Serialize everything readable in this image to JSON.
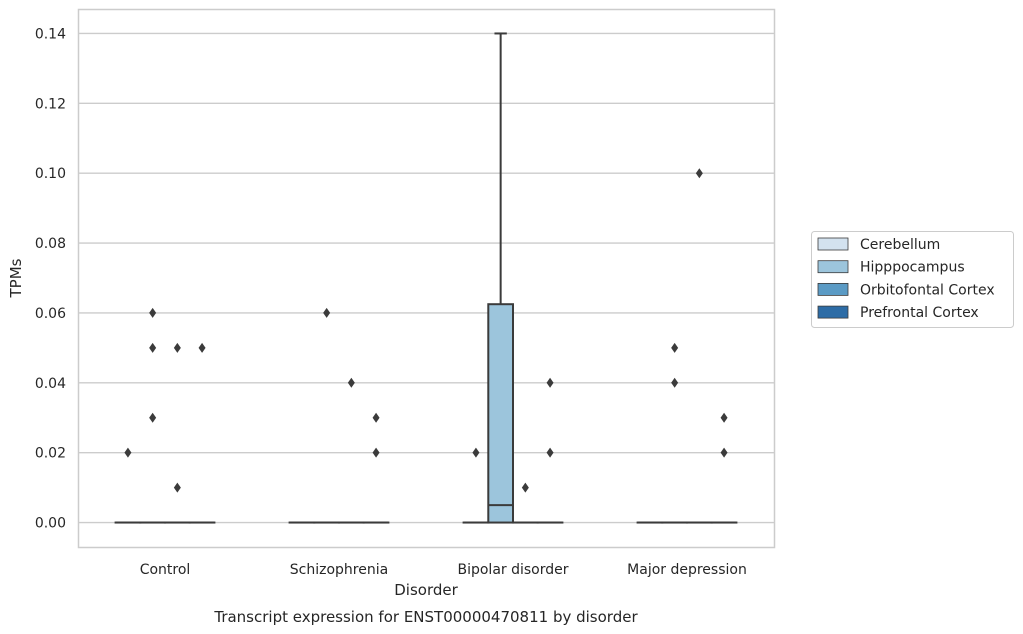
{
  "chart_data": {
    "type": "box",
    "caption": "Transcript expression for ENST00000470811 by disorder",
    "xlabel": "Disorder",
    "ylabel": "TPMs",
    "ylim": [
      -0.007,
      0.147
    ],
    "yticks": [
      0.0,
      0.02,
      0.04,
      0.06,
      0.08,
      0.1,
      0.12,
      0.14
    ],
    "ytick_labels": [
      "0.00",
      "0.02",
      "0.04",
      "0.06",
      "0.08",
      "0.10",
      "0.12",
      "0.14"
    ],
    "grid": "horizontal",
    "legend_position": "right",
    "categories": [
      "Control",
      "Schizophrenia",
      "Bipolar disorder",
      "Major depression"
    ],
    "series": [
      {
        "name": "Cerebellum",
        "color": "#d3e2ef",
        "boxes": [
          {
            "category": "Control",
            "q1": 0,
            "median": 0,
            "q3": 0,
            "whisker_low": 0,
            "whisker_high": 0,
            "outliers": [
              0.02
            ]
          },
          {
            "category": "Schizophrenia",
            "q1": 0,
            "median": 0,
            "q3": 0,
            "whisker_low": 0,
            "whisker_high": 0,
            "outliers": []
          },
          {
            "category": "Bipolar disorder",
            "q1": 0,
            "median": 0,
            "q3": 0,
            "whisker_low": 0,
            "whisker_high": 0,
            "outliers": [
              0.02
            ]
          },
          {
            "category": "Major depression",
            "q1": 0,
            "median": 0,
            "q3": 0,
            "whisker_low": 0,
            "whisker_high": 0,
            "outliers": []
          }
        ]
      },
      {
        "name": "Hipppocampus",
        "color": "#9cc5dc",
        "boxes": [
          {
            "category": "Control",
            "q1": 0,
            "median": 0,
            "q3": 0,
            "whisker_low": 0,
            "whisker_high": 0,
            "outliers": [
              0.06,
              0.05,
              0.03
            ]
          },
          {
            "category": "Schizophrenia",
            "q1": 0,
            "median": 0,
            "q3": 0,
            "whisker_low": 0,
            "whisker_high": 0,
            "outliers": [
              0.06
            ]
          },
          {
            "category": "Bipolar disorder",
            "q1": 0,
            "median": 0.005,
            "q3": 0.0625,
            "whisker_low": 0,
            "whisker_high": 0.14,
            "outliers": []
          },
          {
            "category": "Major depression",
            "q1": 0,
            "median": 0,
            "q3": 0,
            "whisker_low": 0,
            "whisker_high": 0,
            "outliers": [
              0.05,
              0.04
            ]
          }
        ]
      },
      {
        "name": "Orbitofontal Cortex",
        "color": "#5b9bc5",
        "boxes": [
          {
            "category": "Control",
            "q1": 0,
            "median": 0,
            "q3": 0,
            "whisker_low": 0,
            "whisker_high": 0,
            "outliers": [
              0.05,
              0.01
            ]
          },
          {
            "category": "Schizophrenia",
            "q1": 0,
            "median": 0,
            "q3": 0,
            "whisker_low": 0,
            "whisker_high": 0,
            "outliers": [
              0.04
            ]
          },
          {
            "category": "Bipolar disorder",
            "q1": 0,
            "median": 0,
            "q3": 0,
            "whisker_low": 0,
            "whisker_high": 0,
            "outliers": [
              0.01
            ]
          },
          {
            "category": "Major depression",
            "q1": 0,
            "median": 0,
            "q3": 0,
            "whisker_low": 0,
            "whisker_high": 0,
            "outliers": [
              0.1
            ]
          }
        ]
      },
      {
        "name": "Prefrontal Cortex",
        "color": "#2d6ca6",
        "boxes": [
          {
            "category": "Control",
            "q1": 0,
            "median": 0,
            "q3": 0,
            "whisker_low": 0,
            "whisker_high": 0,
            "outliers": [
              0.05
            ]
          },
          {
            "category": "Schizophrenia",
            "q1": 0,
            "median": 0,
            "q3": 0,
            "whisker_low": 0,
            "whisker_high": 0,
            "outliers": [
              0.03,
              0.02
            ]
          },
          {
            "category": "Bipolar disorder",
            "q1": 0,
            "median": 0,
            "q3": 0,
            "whisker_low": 0,
            "whisker_high": 0,
            "outliers": [
              0.04,
              0.02
            ]
          },
          {
            "category": "Major depression",
            "q1": 0,
            "median": 0,
            "q3": 0,
            "whisker_low": 0,
            "whisker_high": 0,
            "outliers": [
              0.03,
              0.02
            ]
          }
        ]
      }
    ]
  }
}
